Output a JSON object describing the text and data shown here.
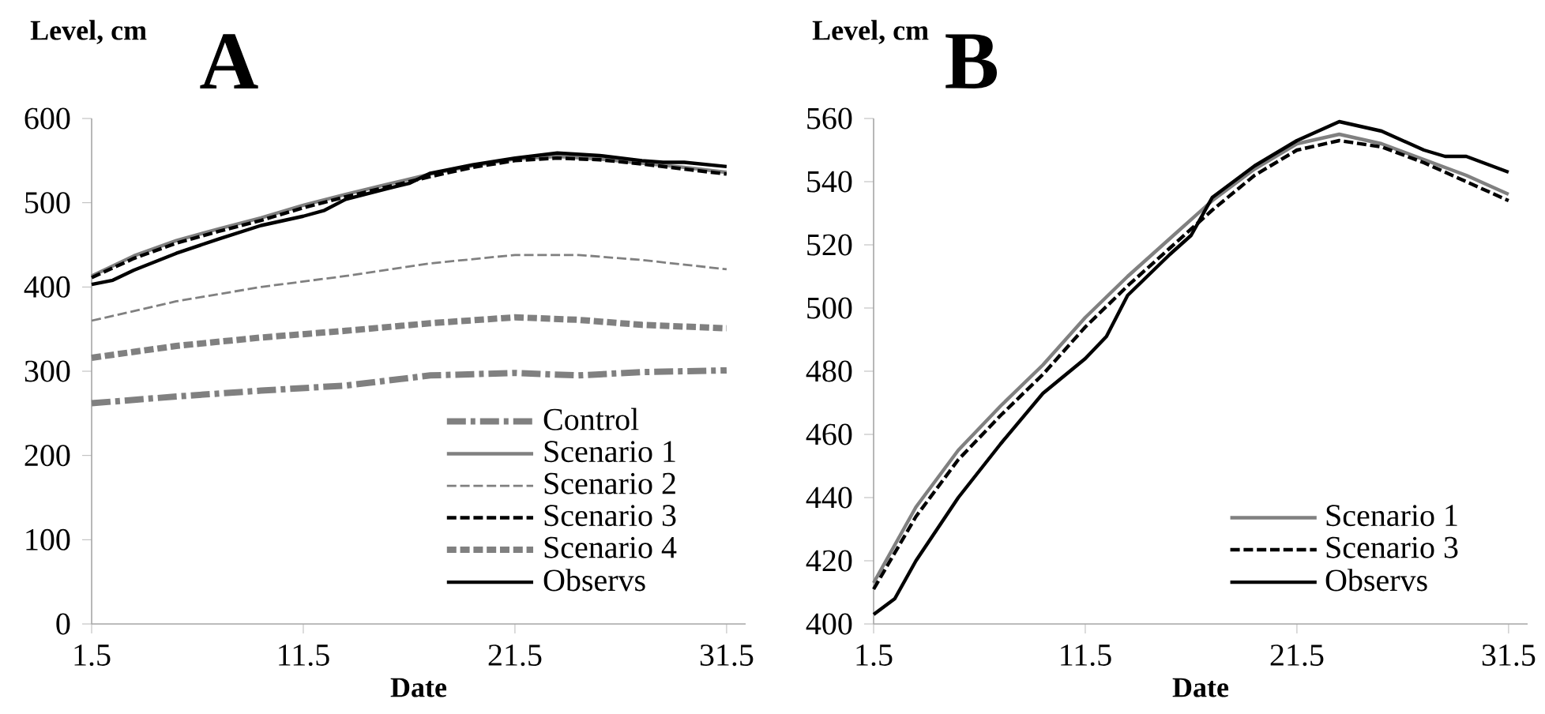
{
  "chart_data": [
    {
      "type": "line",
      "title": "A",
      "xlabel": "Date",
      "ylabel": "Level, cm",
      "xlim": [
        1.5,
        32.4
      ],
      "ylim": [
        0,
        600
      ],
      "xticks": [
        1.5,
        11.5,
        21.5,
        31.5
      ],
      "yticks": [
        0,
        100,
        200,
        300,
        400,
        500,
        600
      ],
      "legend": "bottom right",
      "series": [
        {
          "name": "Control",
          "color": "#808080",
          "line_style": "dashdot",
          "x": [
            1.5,
            5.5,
            9.5,
            13.5,
            17.5,
            21.5,
            24.5,
            27.5,
            31.5
          ],
          "values": [
            262,
            270,
            277,
            283,
            295,
            298,
            295,
            299,
            301
          ]
        },
        {
          "name": "Scenario 1",
          "color": "#808080",
          "line_style": "solid",
          "x": [
            1.5,
            3.5,
            5.5,
            7.5,
            9.5,
            11.5,
            13.5,
            15.5,
            17.5,
            19.5,
            21.5,
            23.5,
            25.5,
            27.5,
            29.5,
            31.5
          ],
          "values": [
            413,
            437,
            455,
            469,
            482,
            497,
            510,
            522,
            534,
            544,
            552,
            555,
            552,
            547,
            542,
            536
          ]
        },
        {
          "name": "Scenario 2",
          "color": "#808080",
          "line_style": "dashed",
          "x": [
            1.5,
            5.5,
            9.5,
            13.5,
            17.5,
            21.5,
            24.5,
            27.5,
            31.5
          ],
          "values": [
            360,
            383,
            400,
            413,
            428,
            438,
            438,
            432,
            421
          ]
        },
        {
          "name": "Scenario 3",
          "color": "#000000",
          "line_style": "dashed",
          "x": [
            1.5,
            3.5,
            5.5,
            7.5,
            9.5,
            11.5,
            13.5,
            15.5,
            17.5,
            19.5,
            21.5,
            23.5,
            25.5,
            27.5,
            29.5,
            31.5
          ],
          "values": [
            411,
            434,
            452,
            466,
            479,
            494,
            507,
            519,
            531,
            542,
            550,
            553,
            551,
            546,
            540,
            534
          ]
        },
        {
          "name": "Scenario 4",
          "color": "#808080",
          "line_style": "dashed",
          "x": [
            1.5,
            5.5,
            9.5,
            13.5,
            17.5,
            21.5,
            24.5,
            27.5,
            31.5
          ],
          "values": [
            316,
            330,
            340,
            348,
            357,
            364,
            361,
            355,
            351
          ]
        },
        {
          "name": "Observs",
          "color": "#000000",
          "line_style": "solid",
          "x": [
            1.5,
            2.5,
            3.5,
            5.5,
            7.5,
            9.5,
            11.5,
            12.5,
            13.5,
            15.5,
            16.5,
            17.5,
            19.5,
            21.5,
            23.5,
            25.5,
            27.5,
            28.5,
            29.5,
            31.5
          ],
          "values": [
            403,
            408,
            420,
            440,
            457,
            473,
            484,
            491,
            504,
            517,
            523,
            535,
            545,
            553,
            559,
            556,
            550,
            548,
            548,
            543
          ]
        }
      ]
    },
    {
      "type": "line",
      "title": "B",
      "xlabel": "Date",
      "ylabel": "Level, cm",
      "xlim": [
        1.5,
        32.4
      ],
      "ylim": [
        400,
        560
      ],
      "xticks": [
        1.5,
        11.5,
        21.5,
        31.5
      ],
      "yticks": [
        400,
        420,
        440,
        460,
        480,
        500,
        520,
        540,
        560
      ],
      "legend": "bottom right",
      "series": [
        {
          "name": "Scenario 1",
          "color": "#808080",
          "line_style": "solid",
          "x": [
            1.5,
            3.5,
            5.5,
            7.5,
            9.5,
            11.5,
            13.5,
            15.5,
            17.5,
            19.5,
            21.5,
            23.5,
            25.5,
            27.5,
            29.5,
            31.5
          ],
          "values": [
            413,
            437,
            455,
            469,
            482,
            497,
            510,
            522,
            534,
            544,
            552,
            555,
            552,
            547,
            542,
            536
          ]
        },
        {
          "name": "Scenario 3",
          "color": "#000000",
          "line_style": "dashed",
          "x": [
            1.5,
            3.5,
            5.5,
            7.5,
            9.5,
            11.5,
            13.5,
            15.5,
            17.5,
            19.5,
            21.5,
            23.5,
            25.5,
            27.5,
            29.5,
            31.5
          ],
          "values": [
            411,
            434,
            452,
            466,
            479,
            494,
            507,
            519,
            531,
            542,
            550,
            553,
            551,
            546,
            540,
            534
          ]
        },
        {
          "name": "Observs",
          "color": "#000000",
          "line_style": "solid",
          "x": [
            1.5,
            2.5,
            3.5,
            5.5,
            7.5,
            9.5,
            11.5,
            12.5,
            13.5,
            15.5,
            16.5,
            17.5,
            19.5,
            21.5,
            23.5,
            25.5,
            27.5,
            28.5,
            29.5,
            31.5
          ],
          "values": [
            403,
            408,
            420,
            440,
            457,
            473,
            484,
            491,
            504,
            517,
            523,
            535,
            545,
            553,
            559,
            556,
            550,
            548,
            548,
            543
          ]
        }
      ]
    }
  ]
}
